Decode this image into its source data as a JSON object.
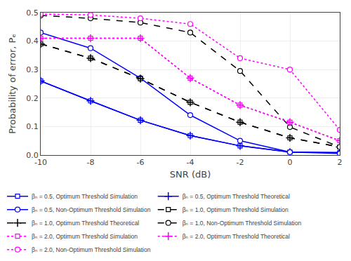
{
  "chart_data": {
    "type": "line",
    "xlabel": "SNR (dB)",
    "ylabel": "Probability of error, Pₑ",
    "x": [
      -10,
      -8,
      -6,
      -4,
      -2,
      0,
      2
    ],
    "series": [
      {
        "name": "βₙ = 0.5, Optimum Threshold Simulation",
        "color": "#0000FF",
        "marker": "square",
        "line_style": "solid",
        "values": [
          0.26,
          0.19,
          0.122,
          0.068,
          0.032,
          0.01,
          0.008
        ]
      },
      {
        "name": "βₙ = 0.5, Optimum Threshold Theoretical",
        "color": "#0000FF",
        "marker": "plus",
        "line_style": "solid",
        "values": [
          0.26,
          0.19,
          0.122,
          0.068,
          0.032,
          0.01,
          0.008
        ]
      },
      {
        "name": "βₙ = 0.5, Non-Optimum Threshold Simulation",
        "color": "#0000FF",
        "marker": "circle",
        "line_style": "solid",
        "values": [
          0.43,
          0.375,
          0.27,
          0.14,
          0.05,
          0.01,
          0.005
        ]
      },
      {
        "name": "βₙ = 1.0, Optimum Threshold Simulation",
        "color": "#000000",
        "marker": "square",
        "line_style": "dashed",
        "values": [
          0.39,
          0.34,
          0.268,
          0.185,
          0.115,
          0.06,
          0.028
        ]
      },
      {
        "name": "βₙ = 1.0, Optimum Threshold Theoretical",
        "color": "#000000",
        "marker": "plus",
        "line_style": "dashed",
        "values": [
          0.39,
          0.34,
          0.268,
          0.185,
          0.115,
          0.06,
          0.028
        ]
      },
      {
        "name": "βₙ = 1.0, Non-Optimum Threshold Simulation",
        "color": "#000000",
        "marker": "circle",
        "line_style": "dashed",
        "values": [
          0.49,
          0.48,
          0.465,
          0.43,
          0.295,
          0.098,
          0.028
        ]
      },
      {
        "name": "βₙ = 2.0, Optimum Threshold Simulation",
        "color": "#FF00FF",
        "marker": "square",
        "line_style": "dotted",
        "values": [
          0.41,
          0.41,
          0.41,
          0.27,
          0.175,
          0.115,
          0.05
        ]
      },
      {
        "name": "βₙ = 2.0, Optimum Threshold Theoretical",
        "color": "#FF00FF",
        "marker": "plus",
        "line_style": "dotted",
        "values": [
          0.41,
          0.41,
          0.41,
          0.27,
          0.175,
          0.115,
          0.05
        ]
      },
      {
        "name": "βₙ = 2.0, Non-Optimum Threshold Simulation",
        "color": "#FF00FF",
        "marker": "circle",
        "line_style": "dotted",
        "values": [
          0.495,
          0.492,
          0.48,
          0.46,
          0.34,
          0.3,
          0.088
        ]
      }
    ],
    "xlim": [
      -10,
      2
    ],
    "xticks": [
      -10,
      -8,
      -6,
      -4,
      -2,
      0,
      2
    ],
    "ylim": [
      0,
      0.5
    ],
    "yticks": [
      {
        "value": 0,
        "label": "0.0"
      },
      0.1,
      0.2,
      0.3,
      0.4,
      0.5
    ],
    "grid": true,
    "legend": "bottom"
  }
}
